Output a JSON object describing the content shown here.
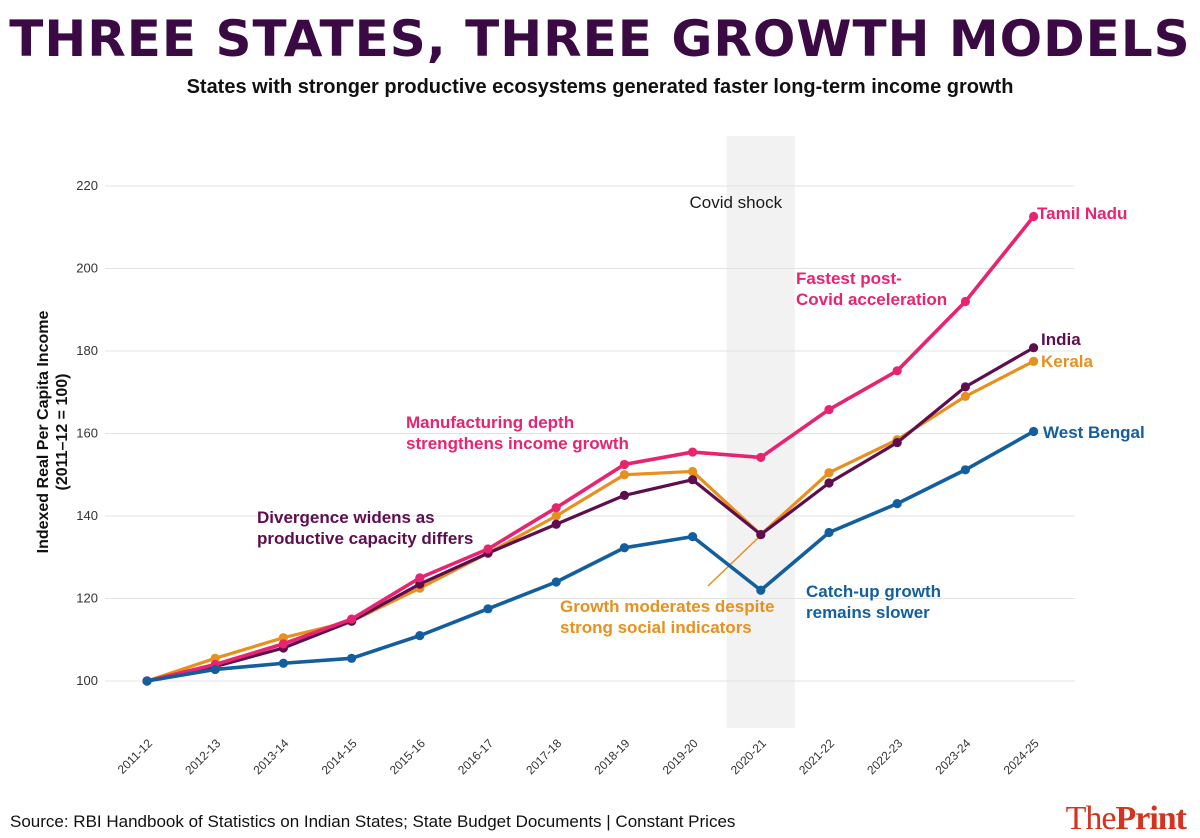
{
  "header": {
    "title": "THREE STATES, THREE GROWTH MODELS",
    "subtitle": "States with stronger productive ecosystems generated faster long-term income growth"
  },
  "footer": {
    "source": "Source: RBI Handbook of Statistics on Indian States; State Budget Documents | Constant Prices",
    "brand_part1": "The",
    "brand_part2": "Print"
  },
  "colors": {
    "tamil_nadu": "#e8236f",
    "india": "#5e0d4f",
    "kerala": "#e8901e",
    "west_bengal": "#135f9e",
    "shade": "#f2f2f2",
    "grid": "#e3e3e3"
  },
  "chart_data": {
    "type": "line",
    "ylabel": "Indexed Real Per Capita Income\n(2011–12 = 100)",
    "xlabel": "",
    "ylim": [
      88,
      232
    ],
    "yticks": [
      100,
      120,
      140,
      160,
      180,
      200,
      220
    ],
    "grid": true,
    "categories": [
      "2011-12",
      "2012-13",
      "2013-14",
      "2014-15",
      "2015-16",
      "2016-17",
      "2017-18",
      "2018-19",
      "2019-20",
      "2020-21",
      "2021-22",
      "2022-23",
      "2023-24",
      "2024-25"
    ],
    "series": [
      {
        "name": "Tamil Nadu",
        "color_key": "tamil_nadu",
        "values": [
          100,
          104,
          109,
          115,
          125,
          132,
          142,
          152.5,
          155.5,
          154.2,
          165.8,
          175.2,
          192,
          212.6
        ]
      },
      {
        "name": "India",
        "color_key": "india",
        "values": [
          100,
          103.5,
          108,
          114.5,
          123.5,
          131,
          138,
          145,
          148.8,
          135.5,
          148,
          157.8,
          171.3,
          180.8
        ]
      },
      {
        "name": "Kerala",
        "color_key": "kerala",
        "values": [
          100,
          105.5,
          110.5,
          114.5,
          122.5,
          131,
          140,
          150,
          150.8,
          135.5,
          150.5,
          158.5,
          169,
          177.5
        ]
      },
      {
        "name": "West Bengal",
        "color_key": "west_bengal",
        "values": [
          100,
          102.8,
          104.3,
          105.5,
          111,
          117.5,
          124,
          132.3,
          135,
          122,
          136,
          143,
          151.2,
          160.5
        ]
      }
    ],
    "shaded_region": {
      "category": "2020-21",
      "label": "Covid shock"
    },
    "annotations": [
      {
        "lines": [
          "Fastest post-",
          "Covid acceleration"
        ],
        "color_key": "tamil_nadu"
      },
      {
        "lines": [
          "Manufacturing depth",
          "strengthens income growth"
        ],
        "color_key": "tamil_nadu"
      },
      {
        "lines": [
          "Divergence widens as",
          "productive capacity differs"
        ],
        "color_key": "india"
      },
      {
        "lines": [
          "Growth moderates despite",
          "strong social indicators"
        ],
        "color_key": "kerala"
      },
      {
        "lines": [
          "Catch-up growth",
          "remains slower"
        ],
        "color_key": "west_bengal"
      }
    ]
  }
}
